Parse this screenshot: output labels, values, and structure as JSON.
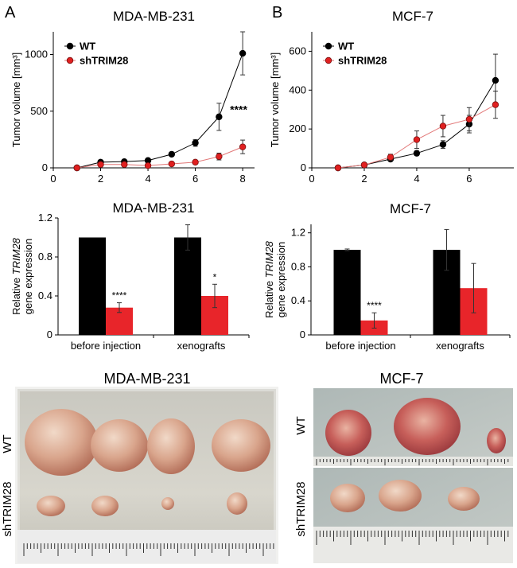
{
  "panels": {
    "a": "A",
    "b": "B"
  },
  "chart_data": [
    {
      "id": "line_mda",
      "type": "line",
      "title": "MDA-MB-231",
      "xlabel": "",
      "ylabel": "Tumor volume [mm³]",
      "xlim": [
        0,
        8.5
      ],
      "ylim": [
        0,
        1200
      ],
      "xticks": [
        0,
        2,
        4,
        6,
        8
      ],
      "yticks": [
        0,
        500,
        1000
      ],
      "annotation": "****",
      "series": [
        {
          "name": "WT",
          "color": "#000000",
          "x": [
            1,
            2,
            3,
            4,
            5,
            6,
            7,
            8
          ],
          "y": [
            0,
            50,
            55,
            65,
            120,
            220,
            450,
            1010
          ],
          "err": [
            0,
            10,
            10,
            10,
            15,
            30,
            120,
            190
          ]
        },
        {
          "name": "shTRIM28",
          "color": "#e02020",
          "x": [
            1,
            2,
            3,
            4,
            5,
            6,
            7,
            8
          ],
          "y": [
            0,
            30,
            30,
            20,
            35,
            50,
            100,
            185
          ],
          "err": [
            0,
            5,
            5,
            5,
            5,
            8,
            30,
            60
          ]
        }
      ]
    },
    {
      "id": "line_mcf",
      "type": "line",
      "title": "MCF-7",
      "xlabel": "",
      "ylabel": "Tumor volume [mm³]",
      "xlim": [
        0,
        7.7
      ],
      "ylim": [
        0,
        700
      ],
      "xticks": [
        0,
        2,
        4,
        6
      ],
      "yticks": [
        0,
        200,
        400,
        600
      ],
      "series": [
        {
          "name": "WT",
          "color": "#000000",
          "x": [
            1,
            2,
            3,
            4,
            5,
            6,
            7
          ],
          "y": [
            0,
            15,
            45,
            75,
            120,
            225,
            450
          ],
          "err": [
            0,
            5,
            10,
            12,
            20,
            45,
            135
          ]
        },
        {
          "name": "shTRIM28",
          "color": "#e02020",
          "x": [
            1,
            2,
            3,
            4,
            5,
            6,
            7
          ],
          "y": [
            0,
            15,
            55,
            145,
            215,
            250,
            325
          ],
          "err": [
            0,
            5,
            15,
            45,
            55,
            60,
            70
          ]
        }
      ]
    },
    {
      "id": "bar_mda",
      "type": "bar",
      "title": "MDA-MB-231",
      "ylabel_line1": "Relative TRIM28",
      "ylabel_line2": "gene expression",
      "ylim": [
        0,
        1.2
      ],
      "yticks": [
        0,
        0.4,
        0.8,
        1.2
      ],
      "categories": [
        "before injection",
        "xenografts"
      ],
      "series": [
        {
          "name": "WT",
          "color": "#000000",
          "values": [
            1.0,
            1.0
          ],
          "err": [
            0,
            0.13
          ]
        },
        {
          "name": "shTRIM28",
          "color": "#e8252a",
          "values": [
            0.28,
            0.4
          ],
          "err": [
            0.05,
            0.12
          ]
        }
      ],
      "significance": [
        "****",
        "*"
      ]
    },
    {
      "id": "bar_mcf",
      "type": "bar",
      "title": "MCF-7",
      "ylabel_line1": "Relative TRIM28",
      "ylabel_line2": "gene expression",
      "ylim": [
        0,
        1.3
      ],
      "yticks": [
        0,
        0.4,
        0.8,
        1.2
      ],
      "categories": [
        "before injection",
        "xenografts"
      ],
      "series": [
        {
          "name": "WT",
          "color": "#000000",
          "values": [
            1.0,
            1.0
          ],
          "err": [
            0.01,
            0.24
          ]
        },
        {
          "name": "shTRIM28",
          "color": "#e8252a",
          "values": [
            0.17,
            0.55
          ],
          "err": [
            0.09,
            0.29
          ]
        }
      ],
      "significance": [
        "****",
        ""
      ]
    }
  ],
  "photos": {
    "left": {
      "title": "MDA-MB-231",
      "row_top": "WT",
      "row_bottom": "shTRIM28"
    },
    "right": {
      "title": "MCF-7",
      "row_top": "WT",
      "row_bottom": "shTRIM28"
    }
  }
}
